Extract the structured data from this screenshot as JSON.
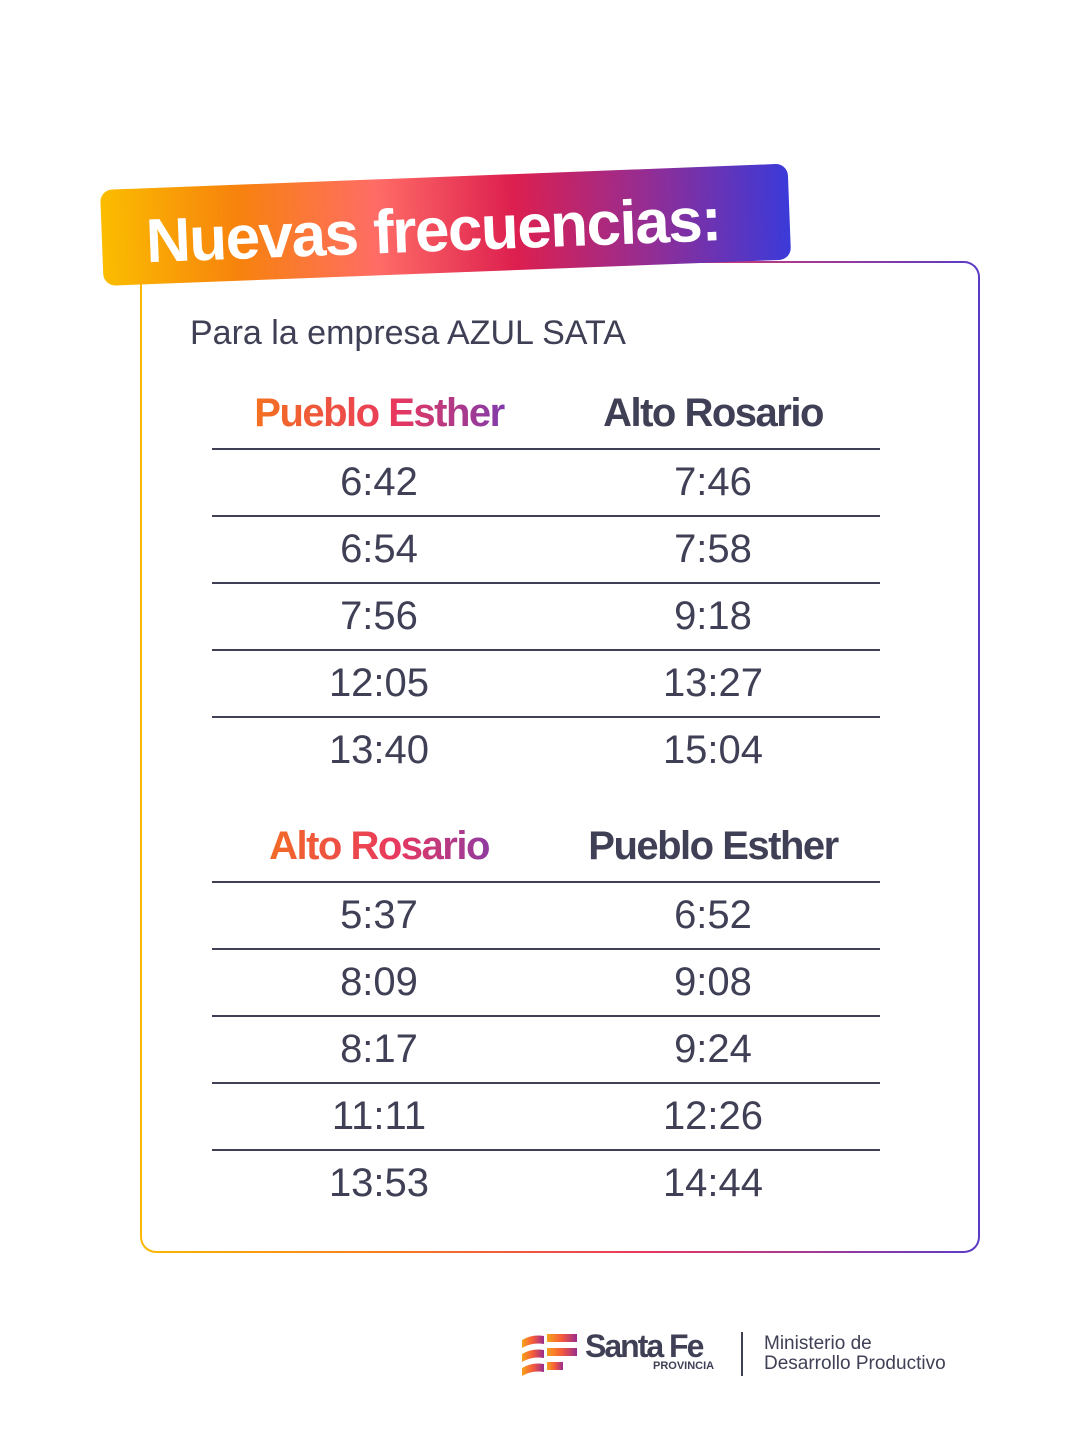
{
  "title": "Nuevas frecuencias:",
  "subtitle": "Para la empresa AZUL SATA",
  "tables": [
    {
      "from": "Pueblo Esther",
      "to": "Alto Rosario",
      "rows": [
        [
          "6:42",
          "7:46"
        ],
        [
          "6:54",
          "7:58"
        ],
        [
          "7:56",
          "9:18"
        ],
        [
          "12:05",
          "13:27"
        ],
        [
          "13:40",
          "15:04"
        ]
      ]
    },
    {
      "from": "Alto Rosario",
      "to": "Pueblo Esther",
      "rows": [
        [
          "5:37",
          "6:52"
        ],
        [
          "8:09",
          "9:08"
        ],
        [
          "8:17",
          "9:24"
        ],
        [
          "11:11",
          "12:26"
        ],
        [
          "13:53",
          "14:44"
        ]
      ]
    }
  ],
  "footer": {
    "brand": "Santa Fe",
    "brand_sub": "PROVINCIA",
    "ministry_line1": "Ministerio de",
    "ministry_line2": "Desarrollo Productivo"
  }
}
